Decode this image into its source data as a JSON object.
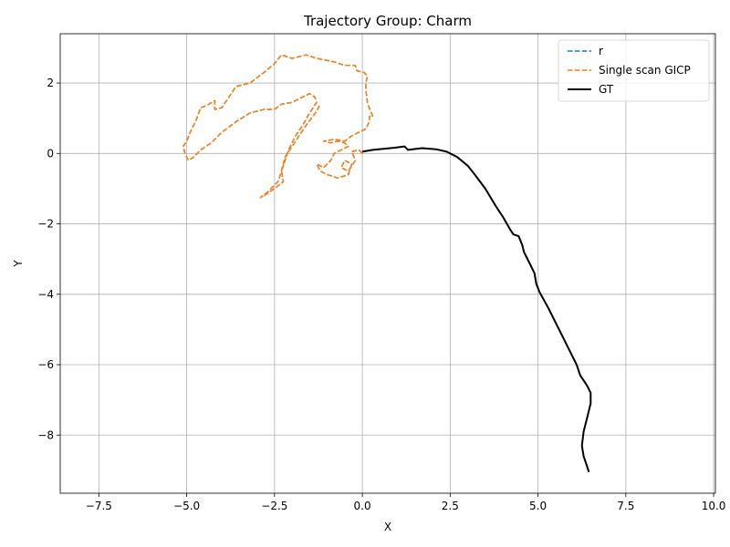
{
  "chart_data": {
    "type": "line",
    "title": "Trajectory Group: Charm",
    "xlabel": "X",
    "ylabel": "Y",
    "xlim": [
      -8.6,
      10.05
    ],
    "ylim": [
      -9.65,
      3.4
    ],
    "xticks": [
      -7.5,
      -5.0,
      -2.5,
      0.0,
      2.5,
      5.0,
      7.5,
      10.0
    ],
    "xtick_labels": [
      "−7.5",
      "−5.0",
      "−2.5",
      "0.0",
      "2.5",
      "5.0",
      "7.5",
      "10.0"
    ],
    "yticks": [
      -8,
      -6,
      -4,
      -2,
      0,
      2
    ],
    "ytick_labels": [
      "−8",
      "−6",
      "−4",
      "−2",
      "0",
      "2"
    ],
    "grid": true,
    "legend_position": "top-right",
    "series": [
      {
        "name": "r",
        "color": "#1f77b4",
        "style": "dashed",
        "points": [
          [
            0.0,
            0.0
          ],
          [
            -0.1,
            0.1
          ],
          [
            -0.3,
            0.05
          ],
          [
            -0.2,
            -0.2
          ],
          [
            -0.4,
            -0.5
          ],
          [
            -0.6,
            -0.4
          ],
          [
            -0.5,
            -0.2
          ],
          [
            -0.3,
            -0.3
          ],
          [
            -0.4,
            -0.6
          ],
          [
            -0.7,
            -0.7
          ],
          [
            -1.0,
            -0.6
          ],
          [
            -1.2,
            -0.5
          ],
          [
            -1.3,
            -0.3
          ],
          [
            -1.1,
            -0.4
          ],
          [
            -0.9,
            -0.2
          ],
          [
            -0.8,
            0.0
          ],
          [
            -0.6,
            0.1
          ],
          [
            -0.4,
            0.2
          ],
          [
            -0.5,
            0.3
          ],
          [
            -0.7,
            0.35
          ],
          [
            -0.9,
            0.3
          ],
          [
            -1.1,
            0.35
          ],
          [
            -0.8,
            0.4
          ],
          [
            -0.5,
            0.35
          ],
          [
            -0.3,
            0.5
          ],
          [
            -0.1,
            0.6
          ],
          [
            0.1,
            0.7
          ],
          [
            0.2,
            0.9
          ],
          [
            0.2,
            1.05
          ],
          [
            0.3,
            1.05
          ],
          [
            0.15,
            1.4
          ],
          [
            0.1,
            1.8
          ],
          [
            0.1,
            2.0
          ],
          [
            0.15,
            2.2
          ],
          [
            0.05,
            2.3
          ],
          [
            -0.15,
            2.35
          ],
          [
            -0.2,
            2.5
          ],
          [
            -0.5,
            2.5
          ],
          [
            -0.8,
            2.6
          ],
          [
            -1.3,
            2.7
          ],
          [
            -1.6,
            2.8
          ],
          [
            -2.0,
            2.7
          ],
          [
            -2.3,
            2.8
          ],
          [
            -2.5,
            2.55
          ],
          [
            -2.8,
            2.3
          ],
          [
            -3.2,
            2.0
          ],
          [
            -3.6,
            1.9
          ],
          [
            -3.8,
            1.6
          ],
          [
            -4.0,
            1.3
          ],
          [
            -4.2,
            1.25
          ],
          [
            -4.2,
            1.5
          ],
          [
            -4.45,
            1.35
          ],
          [
            -4.6,
            1.3
          ],
          [
            -4.75,
            0.9
          ],
          [
            -4.9,
            0.6
          ],
          [
            -5.0,
            0.35
          ],
          [
            -5.1,
            0.2
          ],
          [
            -5.05,
            0.0
          ],
          [
            -4.95,
            -0.2
          ],
          [
            -4.8,
            -0.1
          ],
          [
            -4.6,
            0.1
          ],
          [
            -4.3,
            0.3
          ],
          [
            -4.0,
            0.6
          ],
          [
            -3.6,
            0.9
          ],
          [
            -3.2,
            1.15
          ],
          [
            -2.8,
            1.25
          ],
          [
            -2.5,
            1.25
          ],
          [
            -2.3,
            1.4
          ],
          [
            -2.0,
            1.45
          ],
          [
            -1.7,
            1.6
          ],
          [
            -1.5,
            1.7
          ],
          [
            -1.35,
            1.6
          ],
          [
            -1.3,
            1.45
          ],
          [
            -1.5,
            1.15
          ],
          [
            -1.7,
            0.8
          ],
          [
            -1.9,
            0.5
          ],
          [
            -2.0,
            0.3
          ],
          [
            -2.1,
            0.1
          ],
          [
            -2.2,
            -0.2
          ],
          [
            -2.3,
            -0.5
          ],
          [
            -2.25,
            -0.8
          ],
          [
            -2.5,
            -1.0
          ],
          [
            -2.8,
            -1.2
          ],
          [
            -2.9,
            -1.25
          ],
          [
            -2.7,
            -1.1
          ],
          [
            -2.4,
            -0.8
          ],
          [
            -2.3,
            -0.5
          ],
          [
            -2.2,
            -0.1
          ],
          [
            -2.0,
            0.2
          ],
          [
            -1.8,
            0.5
          ],
          [
            -1.6,
            0.8
          ],
          [
            -1.3,
            1.2
          ],
          [
            -1.2,
            1.4
          ]
        ]
      },
      {
        "name": "Single scan GICP",
        "color": "#ff7f0e",
        "style": "dashed",
        "points": [
          [
            0.0,
            0.0
          ],
          [
            -0.1,
            0.1
          ],
          [
            -0.3,
            0.05
          ],
          [
            -0.2,
            -0.2
          ],
          [
            -0.4,
            -0.5
          ],
          [
            -0.6,
            -0.4
          ],
          [
            -0.5,
            -0.2
          ],
          [
            -0.3,
            -0.3
          ],
          [
            -0.4,
            -0.6
          ],
          [
            -0.7,
            -0.7
          ],
          [
            -1.0,
            -0.6
          ],
          [
            -1.2,
            -0.5
          ],
          [
            -1.3,
            -0.3
          ],
          [
            -1.1,
            -0.4
          ],
          [
            -0.9,
            -0.2
          ],
          [
            -0.8,
            0.0
          ],
          [
            -0.6,
            0.1
          ],
          [
            -0.4,
            0.2
          ],
          [
            -0.5,
            0.3
          ],
          [
            -0.7,
            0.35
          ],
          [
            -0.9,
            0.3
          ],
          [
            -1.1,
            0.35
          ],
          [
            -0.8,
            0.4
          ],
          [
            -0.5,
            0.35
          ],
          [
            -0.3,
            0.5
          ],
          [
            -0.1,
            0.6
          ],
          [
            0.1,
            0.7
          ],
          [
            0.2,
            0.9
          ],
          [
            0.2,
            1.05
          ],
          [
            0.3,
            1.05
          ],
          [
            0.15,
            1.4
          ],
          [
            0.1,
            1.8
          ],
          [
            0.1,
            2.0
          ],
          [
            0.15,
            2.2
          ],
          [
            0.05,
            2.3
          ],
          [
            -0.15,
            2.35
          ],
          [
            -0.2,
            2.5
          ],
          [
            -0.5,
            2.5
          ],
          [
            -0.8,
            2.6
          ],
          [
            -1.3,
            2.7
          ],
          [
            -1.6,
            2.8
          ],
          [
            -2.0,
            2.7
          ],
          [
            -2.3,
            2.8
          ],
          [
            -2.5,
            2.55
          ],
          [
            -2.8,
            2.3
          ],
          [
            -3.2,
            2.0
          ],
          [
            -3.6,
            1.9
          ],
          [
            -3.8,
            1.6
          ],
          [
            -4.0,
            1.3
          ],
          [
            -4.2,
            1.25
          ],
          [
            -4.2,
            1.5
          ],
          [
            -4.45,
            1.35
          ],
          [
            -4.6,
            1.3
          ],
          [
            -4.75,
            0.9
          ],
          [
            -4.9,
            0.6
          ],
          [
            -5.0,
            0.35
          ],
          [
            -5.1,
            0.2
          ],
          [
            -5.05,
            0.0
          ],
          [
            -4.95,
            -0.2
          ],
          [
            -4.8,
            -0.1
          ],
          [
            -4.6,
            0.1
          ],
          [
            -4.3,
            0.3
          ],
          [
            -4.0,
            0.6
          ],
          [
            -3.6,
            0.9
          ],
          [
            -3.2,
            1.15
          ],
          [
            -2.8,
            1.25
          ],
          [
            -2.5,
            1.25
          ],
          [
            -2.3,
            1.4
          ],
          [
            -2.0,
            1.45
          ],
          [
            -1.7,
            1.6
          ],
          [
            -1.5,
            1.7
          ],
          [
            -1.35,
            1.6
          ],
          [
            -1.3,
            1.45
          ],
          [
            -1.5,
            1.15
          ],
          [
            -1.7,
            0.8
          ],
          [
            -1.9,
            0.5
          ],
          [
            -2.0,
            0.3
          ],
          [
            -2.1,
            0.1
          ],
          [
            -2.2,
            -0.2
          ],
          [
            -2.3,
            -0.5
          ],
          [
            -2.25,
            -0.8
          ],
          [
            -2.5,
            -1.0
          ],
          [
            -2.8,
            -1.2
          ],
          [
            -2.9,
            -1.25
          ],
          [
            -2.7,
            -1.1
          ],
          [
            -2.4,
            -0.8
          ],
          [
            -2.3,
            -0.5
          ],
          [
            -2.2,
            -0.1
          ],
          [
            -2.0,
            0.2
          ],
          [
            -1.8,
            0.5
          ],
          [
            -1.6,
            0.8
          ],
          [
            -1.3,
            1.2
          ],
          [
            -1.2,
            1.4
          ]
        ]
      },
      {
        "name": "GT",
        "color": "#000000",
        "style": "solid",
        "points": [
          [
            0.0,
            0.05
          ],
          [
            0.3,
            0.1
          ],
          [
            0.6,
            0.13
          ],
          [
            0.9,
            0.16
          ],
          [
            1.2,
            0.2
          ],
          [
            1.3,
            0.1
          ],
          [
            1.7,
            0.15
          ],
          [
            2.1,
            0.12
          ],
          [
            2.4,
            0.05
          ],
          [
            2.7,
            -0.1
          ],
          [
            3.0,
            -0.35
          ],
          [
            3.2,
            -0.6
          ],
          [
            3.5,
            -1.0
          ],
          [
            3.8,
            -1.5
          ],
          [
            4.0,
            -1.8
          ],
          [
            4.2,
            -2.15
          ],
          [
            4.3,
            -2.3
          ],
          [
            4.45,
            -2.35
          ],
          [
            4.55,
            -2.6
          ],
          [
            4.6,
            -2.8
          ],
          [
            4.75,
            -3.1
          ],
          [
            4.9,
            -3.4
          ],
          [
            4.95,
            -3.7
          ],
          [
            5.05,
            -3.95
          ],
          [
            5.3,
            -4.4
          ],
          [
            5.5,
            -4.8
          ],
          [
            5.7,
            -5.2
          ],
          [
            5.9,
            -5.6
          ],
          [
            6.1,
            -6.0
          ],
          [
            6.2,
            -6.3
          ],
          [
            6.4,
            -6.6
          ],
          [
            6.5,
            -6.8
          ],
          [
            6.5,
            -7.1
          ],
          [
            6.4,
            -7.5
          ],
          [
            6.3,
            -7.9
          ],
          [
            6.25,
            -8.3
          ],
          [
            6.3,
            -8.6
          ],
          [
            6.4,
            -8.9
          ],
          [
            6.45,
            -9.05
          ]
        ]
      }
    ]
  }
}
